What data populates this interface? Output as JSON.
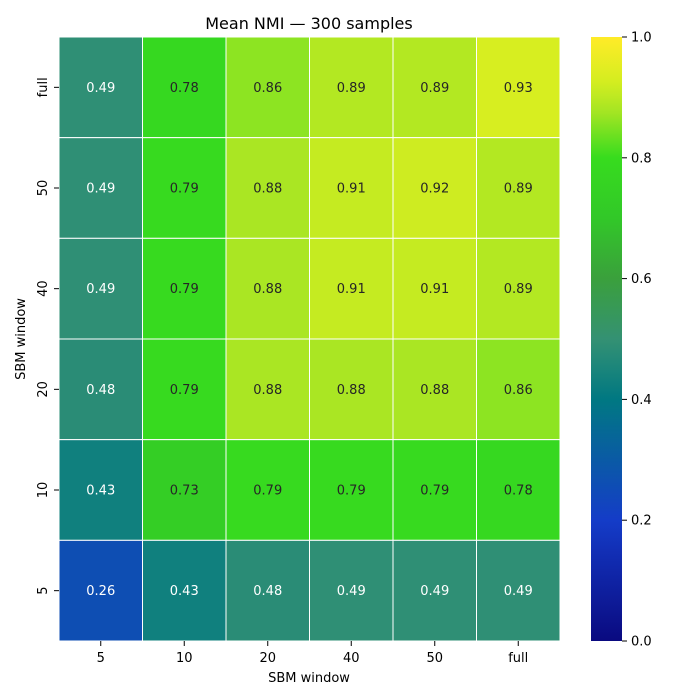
{
  "chart_data": {
    "type": "heatmap",
    "title": "Mean NMI — 300 samples",
    "xlabel": "SBM window",
    "ylabel": "SBM window",
    "x_categories": [
      "5",
      "10",
      "20",
      "40",
      "50",
      "full"
    ],
    "y_categories": [
      "full",
      "50",
      "40",
      "20",
      "10",
      "5"
    ],
    "values": [
      [
        0.49,
        0.78,
        0.86,
        0.89,
        0.89,
        0.93
      ],
      [
        0.49,
        0.79,
        0.88,
        0.91,
        0.92,
        0.89
      ],
      [
        0.49,
        0.79,
        0.88,
        0.91,
        0.91,
        0.89
      ],
      [
        0.48,
        0.79,
        0.88,
        0.88,
        0.88,
        0.86
      ],
      [
        0.43,
        0.73,
        0.79,
        0.79,
        0.79,
        0.78
      ],
      [
        0.26,
        0.43,
        0.48,
        0.49,
        0.49,
        0.49
      ]
    ],
    "colorbar": {
      "min": 0.0,
      "max": 1.0,
      "ticks": [
        "0.0",
        "0.2",
        "0.4",
        "0.6",
        "0.8",
        "1.0"
      ]
    },
    "colormap": "gist_earth-like (navy → blue → teal → green → yellow-green → yellow)",
    "annotations": true
  }
}
